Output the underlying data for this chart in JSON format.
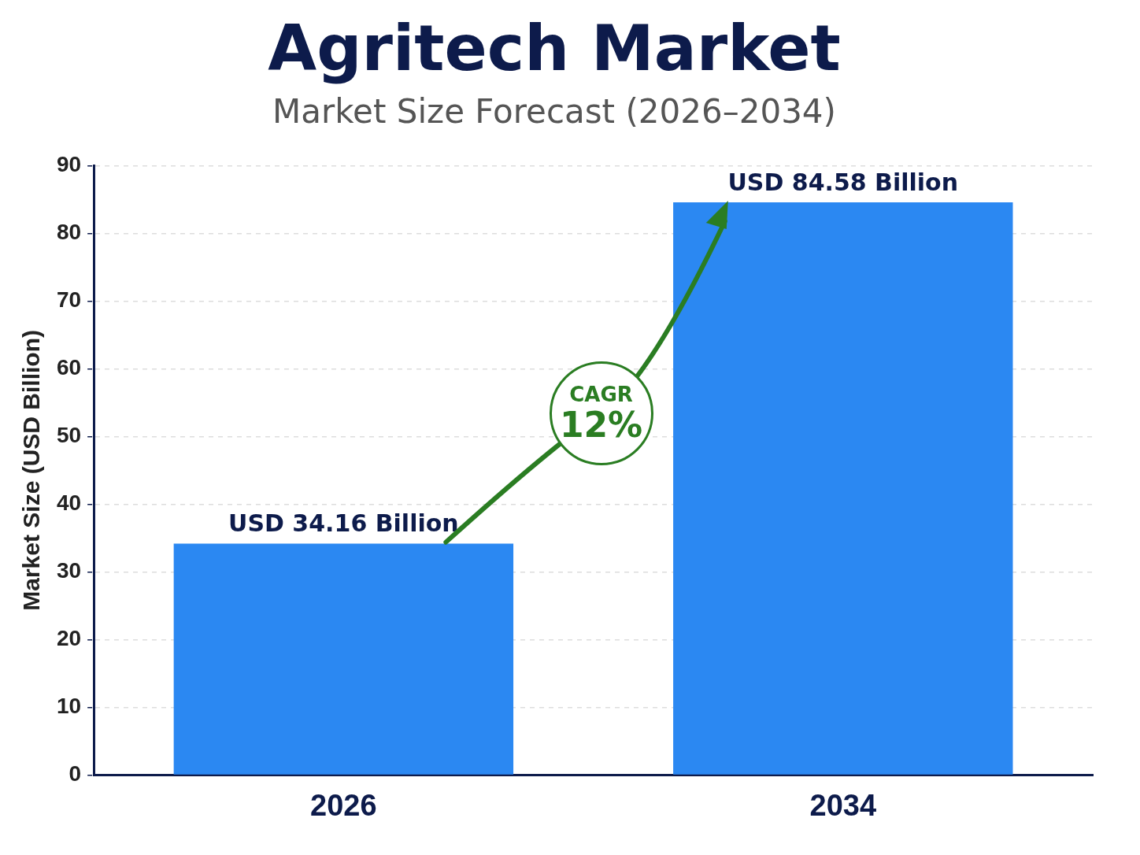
{
  "chart_data": {
    "type": "bar",
    "title": "Agritech Market",
    "subtitle": "Market Size Forecast (2026–2034)",
    "ylabel": "Market Size (USD Billion)",
    "categories": [
      "2026",
      "2034"
    ],
    "values": [
      34.16,
      84.58
    ],
    "value_labels": [
      "USD 34.16 Billion",
      "USD 84.58 Billion"
    ],
    "color": "#2b88f2",
    "ylim": [
      0,
      90
    ],
    "yticks": [
      0,
      10,
      20,
      30,
      40,
      50,
      60,
      70,
      80,
      90
    ],
    "grid": "y",
    "annotations": [
      "CAGR",
      "12%"
    ]
  }
}
